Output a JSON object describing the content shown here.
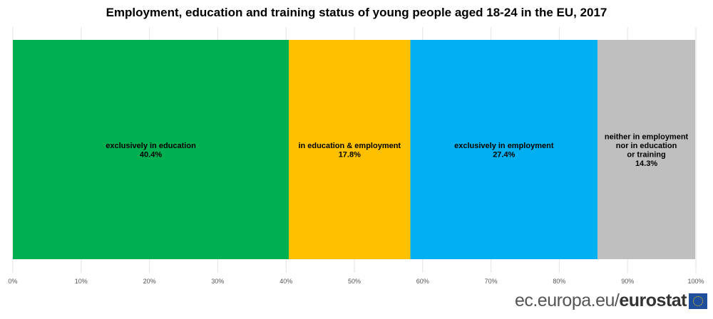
{
  "chart_data": {
    "type": "bar",
    "orientation": "horizontal-stacked-100",
    "title": "Employment, education and training status of young people aged 18-24 in the EU, 2017",
    "series": [
      {
        "name": "exclusively in education",
        "label_lines": [
          "exclusively in education"
        ],
        "value": 40.4,
        "value_label": "40.4%",
        "color": "#00b050"
      },
      {
        "name": "in education & employment",
        "label_lines": [
          "in education & employment"
        ],
        "value": 17.8,
        "value_label": "17.8%",
        "color": "#ffc000"
      },
      {
        "name": "exclusively in employment",
        "label_lines": [
          "exclusively in employment"
        ],
        "value": 27.4,
        "value_label": "27.4%",
        "color": "#00b0f0"
      },
      {
        "name": "neither in employment nor in education or training",
        "label_lines": [
          "neither in employment",
          "nor in education",
          "or training"
        ],
        "value": 14.3,
        "value_label": "14.3%",
        "color": "#bfbfbf"
      }
    ],
    "xlim": [
      0,
      100
    ],
    "xticks": [
      "0%",
      "10%",
      "20%",
      "30%",
      "40%",
      "50%",
      "60%",
      "70%",
      "80%",
      "90%",
      "100%"
    ],
    "grid": true
  },
  "footer": {
    "logo_left": "ec.europa.eu/",
    "logo_right": "eurostat"
  }
}
